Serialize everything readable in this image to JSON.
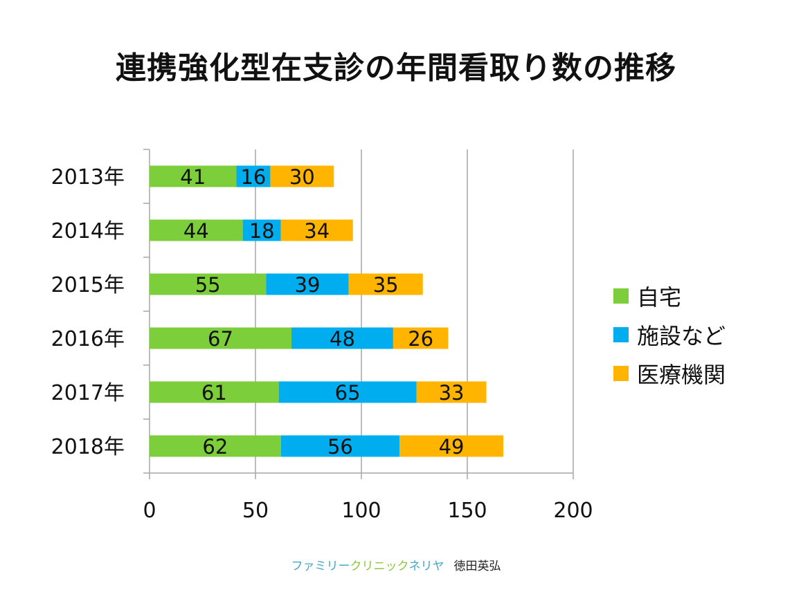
{
  "title": "連携強化型在支診の年間看取り数の推移",
  "chart_data": {
    "type": "bar",
    "orientation": "horizontal",
    "stacked": true,
    "categories": [
      "2013年",
      "2014年",
      "2015年",
      "2016年",
      "2017年",
      "2018年"
    ],
    "series": [
      {
        "name": "自宅",
        "color": "#7dce3b",
        "values": [
          41,
          44,
          55,
          67,
          61,
          62
        ]
      },
      {
        "name": "施設など",
        "color": "#00aeef",
        "values": [
          16,
          18,
          39,
          48,
          65,
          56
        ]
      },
      {
        "name": "医療機関",
        "color": "#ffb400",
        "values": [
          30,
          34,
          35,
          26,
          33,
          49
        ]
      }
    ],
    "xlim": [
      0,
      200
    ],
    "xticks": [
      0,
      50,
      100,
      150,
      200
    ],
    "grid": true,
    "legend_position": "right"
  },
  "footer": {
    "segments": [
      {
        "text": "ファミリー",
        "color": "#3fa9c9"
      },
      {
        "text": "クリニック",
        "color": "#8dc63f"
      },
      {
        "text": "ネリヤ",
        "color": "#3fa9c9"
      }
    ],
    "author": "徳田英弘"
  }
}
